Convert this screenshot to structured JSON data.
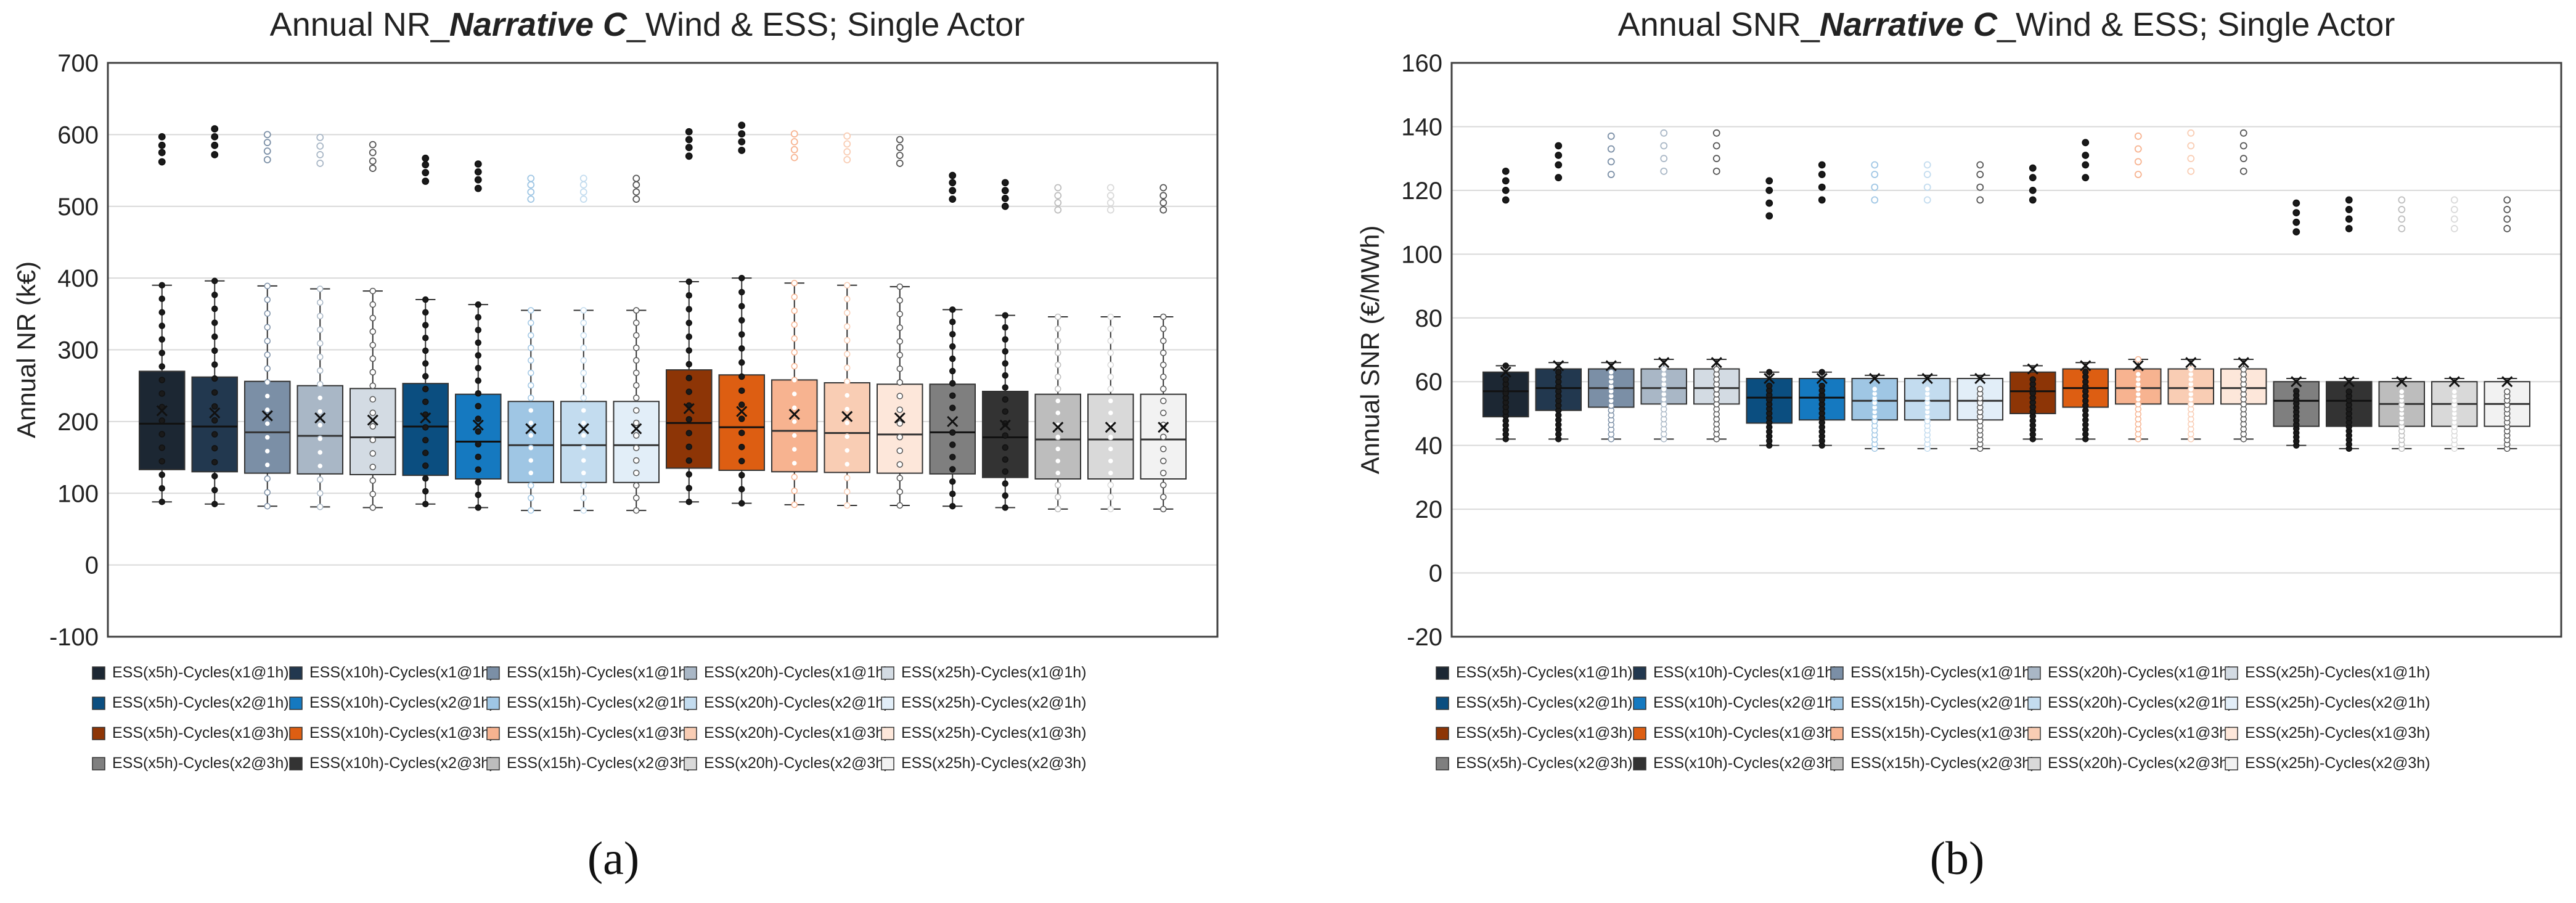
{
  "series": [
    {
      "name": "ESS(x5h)-Cycles(x1@1h)",
      "color": "#1c2733"
    },
    {
      "name": "ESS(x10h)-Cycles(x1@1h)",
      "color": "#22384f"
    },
    {
      "name": "ESS(x15h)-Cycles(x1@1h)",
      "color": "#7b8fa6"
    },
    {
      "name": "ESS(x20h)-Cycles(x1@1h)",
      "color": "#a9b7c6"
    },
    {
      "name": "ESS(x25h)-Cycles(x1@1h)",
      "color": "#d3dbe3"
    },
    {
      "name": "ESS(x5h)-Cycles(x2@1h)",
      "color": "#0b4e80"
    },
    {
      "name": "ESS(x10h)-Cycles(x2@1h)",
      "color": "#1579c0"
    },
    {
      "name": "ESS(x15h)-Cycles(x2@1h)",
      "color": "#9fc6e4"
    },
    {
      "name": "ESS(x20h)-Cycles(x2@1h)",
      "color": "#c3dcef"
    },
    {
      "name": "ESS(x25h)-Cycles(x2@1h)",
      "color": "#e2eef8"
    },
    {
      "name": "ESS(x5h)-Cycles(x1@3h)",
      "color": "#8d3506"
    },
    {
      "name": "ESS(x10h)-Cycles(x1@3h)",
      "color": "#dd5e12"
    },
    {
      "name": "ESS(x15h)-Cycles(x1@3h)",
      "color": "#f7b390"
    },
    {
      "name": "ESS(x20h)-Cycles(x1@3h)",
      "color": "#f9cdb4"
    },
    {
      "name": "ESS(x25h)-Cycles(x1@3h)",
      "color": "#fde7da"
    },
    {
      "name": "ESS(x5h)-Cycles(x2@3h)",
      "color": "#7f7f7f"
    },
    {
      "name": "ESS(x10h)-Cycles(x2@3h)",
      "color": "#333333"
    },
    {
      "name": "ESS(x15h)-Cycles(x2@3h)",
      "color": "#bdbdbd"
    },
    {
      "name": "ESS(x20h)-Cycles(x2@3h)",
      "color": "#d9d9d9"
    },
    {
      "name": "ESS(x25h)-Cycles(x2@3h)",
      "color": "#f2f2f2"
    }
  ],
  "chart_data": [
    {
      "type": "boxplot",
      "panel_label": "(a)",
      "title_prefix": "Annual NR_",
      "title_emph": "Narrative C",
      "title_suffix": "_Wind & ESS; Single Actor",
      "ylabel": "Annual  NR (k€)",
      "ylim": [
        -100,
        700
      ],
      "yticks": [
        -100,
        0,
        100,
        200,
        300,
        400,
        500,
        600,
        700
      ],
      "boxes": [
        {
          "min": 88,
          "q1": 133,
          "median": 197,
          "q3": 270,
          "max": 390,
          "mean": 215,
          "outliers": [
            562,
            575,
            585,
            597
          ]
        },
        {
          "min": 85,
          "q1": 130,
          "median": 193,
          "q3": 262,
          "max": 396,
          "mean": 212,
          "outliers": [
            572,
            585,
            597,
            608
          ]
        },
        {
          "min": 82,
          "q1": 128,
          "median": 185,
          "q3": 256,
          "max": 389,
          "mean": 208,
          "outliers": [
            565,
            577,
            589,
            600
          ]
        },
        {
          "min": 81,
          "q1": 127,
          "median": 180,
          "q3": 250,
          "max": 385,
          "mean": 205,
          "outliers": [
            560,
            572,
            584,
            596
          ]
        },
        {
          "min": 80,
          "q1": 126,
          "median": 178,
          "q3": 246,
          "max": 382,
          "mean": 202,
          "outliers": [
            553,
            563,
            575,
            586
          ]
        },
        {
          "min": 85,
          "q1": 125,
          "median": 193,
          "q3": 253,
          "max": 370,
          "mean": 205,
          "outliers": [
            535,
            547,
            558,
            567
          ]
        },
        {
          "min": 80,
          "q1": 120,
          "median": 172,
          "q3": 238,
          "max": 363,
          "mean": 195,
          "outliers": [
            525,
            537,
            548,
            559
          ]
        },
        {
          "min": 76,
          "q1": 115,
          "median": 167,
          "q3": 228,
          "max": 355,
          "mean": 190,
          "outliers": [
            510,
            520,
            530,
            539
          ]
        },
        {
          "min": 76,
          "q1": 115,
          "median": 167,
          "q3": 228,
          "max": 355,
          "mean": 190,
          "outliers": [
            510,
            520,
            530,
            539
          ]
        },
        {
          "min": 76,
          "q1": 115,
          "median": 167,
          "q3": 228,
          "max": 355,
          "mean": 190,
          "outliers": [
            510,
            520,
            530,
            539
          ]
        },
        {
          "min": 88,
          "q1": 135,
          "median": 198,
          "q3": 272,
          "max": 395,
          "mean": 218,
          "outliers": [
            570,
            582,
            593,
            604
          ]
        },
        {
          "min": 86,
          "q1": 132,
          "median": 192,
          "q3": 265,
          "max": 400,
          "mean": 214,
          "outliers": [
            578,
            590,
            601,
            613
          ]
        },
        {
          "min": 84,
          "q1": 130,
          "median": 187,
          "q3": 258,
          "max": 393,
          "mean": 210,
          "outliers": [
            568,
            579,
            590,
            601
          ]
        },
        {
          "min": 83,
          "q1": 129,
          "median": 184,
          "q3": 254,
          "max": 390,
          "mean": 207,
          "outliers": [
            565,
            576,
            587,
            598
          ]
        },
        {
          "min": 83,
          "q1": 128,
          "median": 182,
          "q3": 252,
          "max": 388,
          "mean": 205,
          "outliers": [
            560,
            571,
            582,
            593
          ]
        },
        {
          "min": 82,
          "q1": 127,
          "median": 185,
          "q3": 252,
          "max": 356,
          "mean": 200,
          "outliers": [
            510,
            522,
            533,
            543
          ]
        },
        {
          "min": 80,
          "q1": 122,
          "median": 178,
          "q3": 242,
          "max": 348,
          "mean": 195,
          "outliers": [
            500,
            511,
            522,
            533
          ]
        },
        {
          "min": 78,
          "q1": 120,
          "median": 175,
          "q3": 238,
          "max": 346,
          "mean": 192,
          "outliers": [
            495,
            505,
            515,
            526
          ]
        },
        {
          "min": 78,
          "q1": 120,
          "median": 175,
          "q3": 238,
          "max": 346,
          "mean": 192,
          "outliers": [
            495,
            505,
            515,
            526
          ]
        },
        {
          "min": 78,
          "q1": 120,
          "median": 175,
          "q3": 238,
          "max": 346,
          "mean": 192,
          "outliers": [
            495,
            505,
            515,
            526
          ]
        }
      ]
    },
    {
      "type": "boxplot",
      "panel_label": "(b)",
      "title_prefix": "Annual SNR_",
      "title_emph": "Narrative C",
      "title_suffix": "_Wind & ESS; Single Actor",
      "ylabel": "Annual  SNR (€/MWh)",
      "ylim": [
        -20,
        160
      ],
      "yticks": [
        -20,
        0,
        20,
        40,
        60,
        80,
        100,
        120,
        140,
        160
      ],
      "boxes": [
        {
          "min": 42,
          "q1": 49,
          "median": 57,
          "q3": 63,
          "max": 65,
          "mean": 63,
          "outliers": [
            117,
            120,
            123,
            126
          ]
        },
        {
          "min": 42,
          "q1": 51,
          "median": 58,
          "q3": 64,
          "max": 66,
          "mean": 65,
          "outliers": [
            124,
            128,
            131,
            134
          ]
        },
        {
          "min": 42,
          "q1": 52,
          "median": 58,
          "q3": 64,
          "max": 66,
          "mean": 65,
          "outliers": [
            125,
            129,
            133,
            137
          ]
        },
        {
          "min": 42,
          "q1": 53,
          "median": 58,
          "q3": 64,
          "max": 67,
          "mean": 66,
          "outliers": [
            126,
            130,
            134,
            138
          ]
        },
        {
          "min": 42,
          "q1": 53,
          "median": 58,
          "q3": 64,
          "max": 67,
          "mean": 66,
          "outliers": [
            126,
            130,
            134,
            138
          ]
        },
        {
          "min": 40,
          "q1": 47,
          "median": 55,
          "q3": 61,
          "max": 63,
          "mean": 61,
          "outliers": [
            112,
            116,
            120,
            123
          ]
        },
        {
          "min": 40,
          "q1": 48,
          "median": 55,
          "q3": 61,
          "max": 63,
          "mean": 61,
          "outliers": [
            117,
            121,
            125,
            128
          ]
        },
        {
          "min": 39,
          "q1": 48,
          "median": 54,
          "q3": 61,
          "max": 62,
          "mean": 61,
          "outliers": [
            117,
            121,
            125,
            128
          ]
        },
        {
          "min": 39,
          "q1": 48,
          "median": 54,
          "q3": 61,
          "max": 62,
          "mean": 61,
          "outliers": [
            117,
            121,
            125,
            128
          ]
        },
        {
          "min": 39,
          "q1": 48,
          "median": 54,
          "q3": 61,
          "max": 62,
          "mean": 61,
          "outliers": [
            117,
            121,
            125,
            128
          ]
        },
        {
          "min": 42,
          "q1": 50,
          "median": 57,
          "q3": 63,
          "max": 65,
          "mean": 64,
          "outliers": [
            117,
            120,
            124,
            127
          ]
        },
        {
          "min": 42,
          "q1": 52,
          "median": 58,
          "q3": 64,
          "max": 66,
          "mean": 65,
          "outliers": [
            124,
            128,
            131,
            135
          ]
        },
        {
          "min": 42,
          "q1": 53,
          "median": 58,
          "q3": 64,
          "max": 67,
          "mean": 65,
          "outliers": [
            125,
            129,
            133,
            137
          ]
        },
        {
          "min": 42,
          "q1": 53,
          "median": 58,
          "q3": 64,
          "max": 67,
          "mean": 66,
          "outliers": [
            126,
            130,
            134,
            138
          ]
        },
        {
          "min": 42,
          "q1": 53,
          "median": 58,
          "q3": 64,
          "max": 67,
          "mean": 66,
          "outliers": [
            126,
            130,
            134,
            138
          ]
        },
        {
          "min": 40,
          "q1": 46,
          "median": 54,
          "q3": 60,
          "max": 61,
          "mean": 60,
          "outliers": [
            107,
            110,
            113,
            116
          ]
        },
        {
          "min": 39,
          "q1": 46,
          "median": 54,
          "q3": 60,
          "max": 61,
          "mean": 60,
          "outliers": [
            108,
            111,
            114,
            117
          ]
        },
        {
          "min": 39,
          "q1": 46,
          "median": 53,
          "q3": 60,
          "max": 61,
          "mean": 60,
          "outliers": [
            108,
            111,
            114,
            117
          ]
        },
        {
          "min": 39,
          "q1": 46,
          "median": 53,
          "q3": 60,
          "max": 61,
          "mean": 60,
          "outliers": [
            108,
            111,
            114,
            117
          ]
        },
        {
          "min": 39,
          "q1": 46,
          "median": 53,
          "q3": 60,
          "max": 61,
          "mean": 60,
          "outliers": [
            108,
            111,
            114,
            117
          ]
        }
      ]
    }
  ]
}
